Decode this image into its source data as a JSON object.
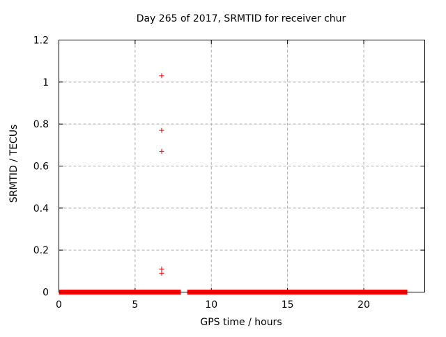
{
  "chart_data": {
    "type": "scatter",
    "title": "Day 265 of 2017, SRMTID for receiver chur",
    "xlabel": "GPS time / hours",
    "ylabel": "SRMTID / TECUs",
    "xlim": [
      0,
      24
    ],
    "ylim": [
      0,
      1.2
    ],
    "xticks": [
      0,
      5,
      10,
      15,
      20
    ],
    "xtick_labels": [
      "0",
      "5",
      "10",
      "15",
      "20"
    ],
    "yticks": [
      0,
      0.2,
      0.4,
      0.6,
      0.8,
      1.0,
      1.2
    ],
    "ytick_labels": [
      "0",
      "0.2",
      "0.4",
      "0.6",
      "0.8",
      "1",
      "1.2"
    ],
    "grid": true,
    "legend": "none",
    "marker": "plus",
    "marker_size_px": 7,
    "colors": {
      "series": "#ff0000",
      "grid": "#ababab",
      "border": "#000000",
      "text": "#000000",
      "background": "#ffffff"
    },
    "series": [
      {
        "name": "SRMTID",
        "color": "#ff0000",
        "outlier_points": [
          {
            "x": 6.74,
            "y": 1.03
          },
          {
            "x": 6.74,
            "y": 0.77
          },
          {
            "x": 6.74,
            "y": 0.67
          },
          {
            "x": 6.74,
            "y": 0.11
          },
          {
            "x": 6.74,
            "y": 0.09
          }
        ],
        "baseline_segments": [
          {
            "x_start": 0.0,
            "x_end": 8.0,
            "y": 0
          },
          {
            "x_start": 8.42,
            "x_end": 22.86,
            "y": 0
          }
        ]
      }
    ]
  }
}
